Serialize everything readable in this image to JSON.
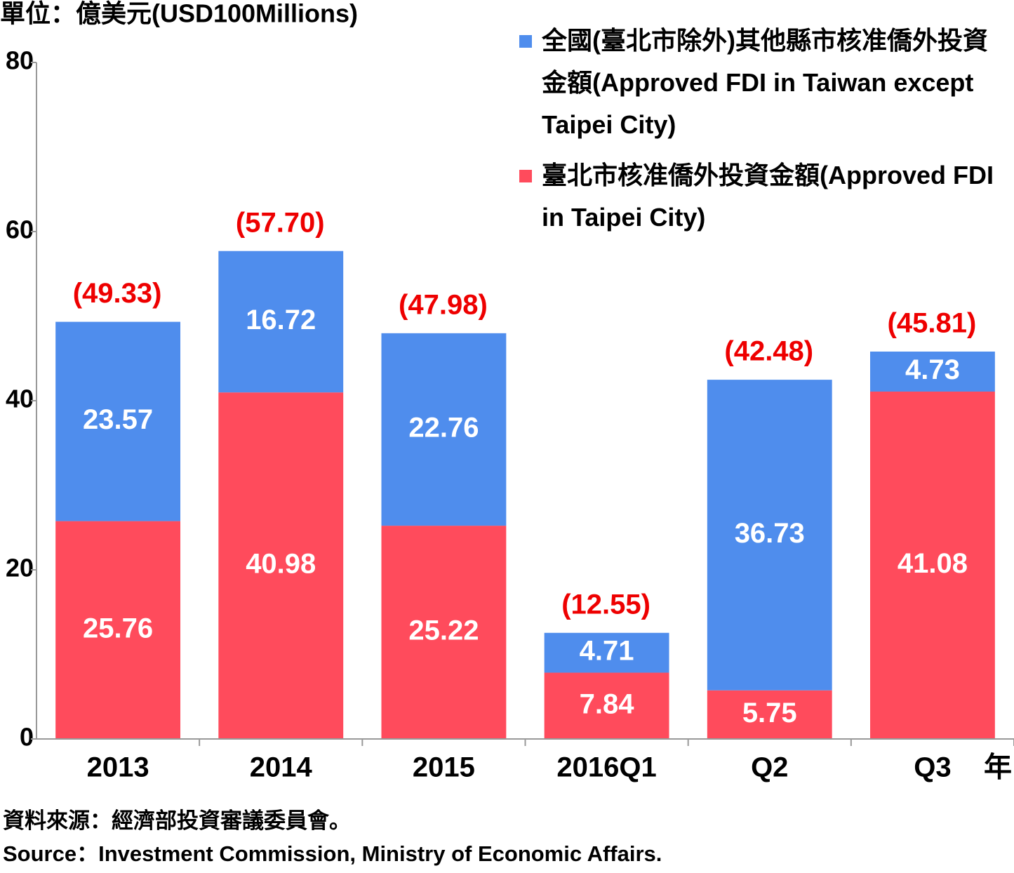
{
  "chart_data": {
    "type": "stacked_bar",
    "unit_label": "單位：億美元(USD100Millions)",
    "x_suffix": "年",
    "categories": [
      "2013",
      "2014",
      "2015",
      "2016Q1",
      "Q2",
      "Q3"
    ],
    "series": [
      {
        "name": "全國(臺北市除外)其他縣市核准僑外投資金額(Approved FDI in Taiwan except Taipei City)",
        "color": "#4f8ded",
        "values": [
          23.57,
          16.72,
          22.76,
          4.71,
          36.73,
          4.73
        ]
      },
      {
        "name": "臺北市核准僑外投資金額(Approved FDI in Taipei City)",
        "color": "#ff4b5c",
        "values": [
          25.76,
          40.98,
          25.22,
          7.84,
          5.75,
          41.08
        ]
      }
    ],
    "totals": {
      "values": [
        49.33,
        57.7,
        47.98,
        12.55,
        42.48,
        45.81
      ],
      "value_labels": [
        "(49.33)",
        "(57.70)",
        "(47.98)",
        "(12.55)",
        "(42.48)",
        "(45.81)"
      ],
      "color": "#ee0000"
    },
    "ylim": [
      0,
      80
    ],
    "yticks": [
      0,
      20,
      40,
      60,
      80
    ],
    "source": [
      "資料來源：經濟部投資審議委員會。",
      "Source：Investment Commission, Ministry of Economic Affairs."
    ]
  }
}
